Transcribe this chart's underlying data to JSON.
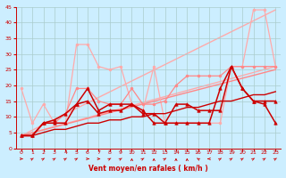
{
  "xlabel": "Vent moyen/en rafales ( km/h )",
  "background_color": "#cceeff",
  "grid_color": "#aacccc",
  "xlim": [
    -0.5,
    23.5
  ],
  "ylim": [
    0,
    45
  ],
  "xticks": [
    0,
    1,
    2,
    3,
    4,
    5,
    6,
    7,
    8,
    9,
    10,
    11,
    12,
    13,
    14,
    15,
    16,
    17,
    18,
    19,
    20,
    21,
    22,
    23
  ],
  "yticks": [
    0,
    5,
    10,
    15,
    20,
    25,
    30,
    35,
    40,
    45
  ],
  "series": [
    {
      "x": [
        0,
        23
      ],
      "y": [
        4,
        44
      ],
      "color": "#ffaaaa",
      "linewidth": 1.0,
      "marker": null,
      "zorder": 1
    },
    {
      "x": [
        0,
        23
      ],
      "y": [
        4,
        26
      ],
      "color": "#ffaaaa",
      "linewidth": 1.0,
      "marker": null,
      "zorder": 1
    },
    {
      "x": [
        0,
        23
      ],
      "y": [
        4,
        25
      ],
      "color": "#ff8888",
      "linewidth": 1.0,
      "marker": null,
      "zorder": 2
    },
    {
      "x": [
        0,
        1,
        2,
        3,
        4,
        5,
        6,
        7,
        8,
        9,
        10,
        11,
        12,
        13,
        14,
        15,
        16,
        17,
        18,
        19,
        20,
        21,
        22,
        23
      ],
      "y": [
        19,
        8,
        14,
        8,
        8,
        33,
        33,
        26,
        25,
        26,
        14,
        12,
        26,
        8,
        8,
        8,
        8,
        8,
        8,
        26,
        26,
        44,
        44,
        26
      ],
      "color": "#ffaaaa",
      "linewidth": 0.9,
      "marker": "o",
      "markersize": 2.0,
      "zorder": 3
    },
    {
      "x": [
        0,
        1,
        2,
        3,
        4,
        5,
        6,
        7,
        8,
        9,
        10,
        11,
        12,
        13,
        14,
        15,
        16,
        17,
        18,
        19,
        20,
        21,
        22,
        23
      ],
      "y": [
        4,
        4,
        8,
        8,
        11,
        19,
        19,
        15,
        14,
        14,
        19,
        14,
        14,
        15,
        20,
        23,
        23,
        23,
        23,
        26,
        26,
        26,
        26,
        26
      ],
      "color": "#ff8888",
      "linewidth": 0.9,
      "marker": "o",
      "markersize": 2.0,
      "zorder": 4
    },
    {
      "x": [
        0,
        1,
        2,
        3,
        4,
        5,
        6,
        7,
        8,
        9,
        10,
        11,
        12,
        13,
        14,
        15,
        16,
        17,
        18,
        19,
        20,
        21,
        22,
        23
      ],
      "y": [
        4,
        4,
        8,
        8,
        8,
        14,
        15,
        11,
        12,
        12,
        14,
        11,
        11,
        8,
        8,
        8,
        8,
        8,
        19,
        26,
        19,
        15,
        14,
        8
      ],
      "color": "#cc0000",
      "linewidth": 1.1,
      "marker": "^",
      "markersize": 2.5,
      "zorder": 6
    },
    {
      "x": [
        0,
        1,
        2,
        3,
        4,
        5,
        6,
        7,
        8,
        9,
        10,
        11,
        12,
        13,
        14,
        15,
        16,
        17,
        18,
        19,
        20,
        21,
        22,
        23
      ],
      "y": [
        4,
        4,
        8,
        9,
        11,
        14,
        19,
        12,
        14,
        14,
        14,
        12,
        8,
        8,
        14,
        14,
        12,
        12,
        12,
        26,
        19,
        15,
        15,
        15
      ],
      "color": "#cc0000",
      "linewidth": 1.1,
      "marker": "^",
      "markersize": 2.5,
      "zorder": 7
    },
    {
      "x": [
        0,
        1,
        2,
        3,
        4,
        5,
        6,
        7,
        8,
        9,
        10,
        11,
        12,
        13,
        14,
        15,
        16,
        17,
        18,
        19,
        20,
        21,
        22,
        23
      ],
      "y": [
        4,
        4,
        5,
        6,
        6,
        7,
        8,
        8,
        9,
        9,
        10,
        10,
        11,
        11,
        12,
        13,
        13,
        14,
        15,
        15,
        16,
        17,
        17,
        18
      ],
      "color": "#cc0000",
      "linewidth": 1.0,
      "marker": null,
      "zorder": 5
    }
  ],
  "wind_arrows": {
    "x": [
      0,
      1,
      2,
      3,
      4,
      5,
      6,
      7,
      8,
      9,
      10,
      11,
      12,
      13,
      14,
      15,
      16,
      17,
      18,
      19,
      20,
      21,
      22,
      23
    ],
    "angles": [
      90,
      45,
      45,
      45,
      45,
      45,
      90,
      90,
      45,
      45,
      0,
      45,
      0,
      45,
      0,
      0,
      315,
      270,
      45,
      45,
      45,
      45,
      45,
      45
    ]
  }
}
